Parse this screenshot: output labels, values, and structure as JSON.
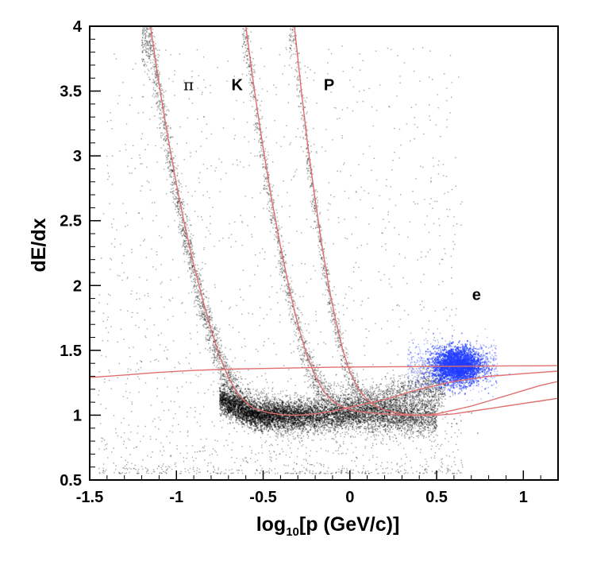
{
  "chart_data": {
    "type": "scatter",
    "title": "",
    "xlabel": "log10[p (GeV/c)]",
    "xlabel_main": "log",
    "xlabel_sub": "10",
    "xlabel_rest": "[p (GeV/c)]",
    "ylabel": "dE/dx",
    "xlim": [
      -1.5,
      1.2
    ],
    "ylim": [
      0.5,
      4.0
    ],
    "x_ticks": [
      "-1.5",
      "-1",
      "-0.5",
      "0",
      "0.5",
      "1"
    ],
    "y_ticks": [
      "0.5",
      "1",
      "1.5",
      "2",
      "2.5",
      "3",
      "3.5",
      "4"
    ],
    "grid": false,
    "band_labels": [
      {
        "text": "π",
        "x": -0.93,
        "y": 3.55
      },
      {
        "text": "K",
        "x": -0.65,
        "y": 3.55
      },
      {
        "text": "P",
        "x": -0.12,
        "y": 3.55
      },
      {
        "text": "e",
        "x": 0.73,
        "y": 1.93
      }
    ],
    "series": [
      {
        "kind": "curve",
        "color": "#e07070",
        "points": [
          [
            -1.15,
            4.0
          ],
          [
            -1.1,
            3.55
          ],
          [
            -1.05,
            3.15
          ],
          [
            -1.0,
            2.78
          ],
          [
            -0.95,
            2.45
          ],
          [
            -0.9,
            2.16
          ],
          [
            -0.85,
            1.9
          ],
          [
            -0.8,
            1.66
          ],
          [
            -0.75,
            1.45
          ],
          [
            -0.7,
            1.29
          ],
          [
            -0.65,
            1.17
          ],
          [
            -0.6,
            1.1
          ],
          [
            -0.55,
            1.05
          ],
          [
            -0.5,
            1.03
          ],
          [
            -0.45,
            1.015
          ],
          [
            -0.4,
            1.005
          ],
          [
            -0.35,
            1.0
          ],
          [
            -0.3,
            1.0
          ],
          [
            -0.2,
            1.01
          ],
          [
            -0.1,
            1.03
          ],
          [
            0.0,
            1.06
          ],
          [
            0.1,
            1.09
          ],
          [
            0.2,
            1.12
          ],
          [
            0.3,
            1.16
          ],
          [
            0.4,
            1.2
          ],
          [
            0.5,
            1.23
          ],
          [
            0.6,
            1.26
          ],
          [
            0.7,
            1.28
          ],
          [
            0.8,
            1.3
          ],
          [
            0.9,
            1.31
          ],
          [
            1.0,
            1.32
          ],
          [
            1.1,
            1.33
          ],
          [
            1.2,
            1.34
          ]
        ]
      },
      {
        "kind": "curve",
        "color": "#e07070",
        "points": [
          [
            -0.6,
            4.0
          ],
          [
            -0.55,
            3.5
          ],
          [
            -0.5,
            3.06
          ],
          [
            -0.45,
            2.66
          ],
          [
            -0.4,
            2.3
          ],
          [
            -0.35,
            1.98
          ],
          [
            -0.3,
            1.7
          ],
          [
            -0.25,
            1.47
          ],
          [
            -0.2,
            1.3
          ],
          [
            -0.15,
            1.18
          ],
          [
            -0.1,
            1.11
          ],
          [
            -0.05,
            1.07
          ],
          [
            0.0,
            1.04
          ],
          [
            0.1,
            1.02
          ],
          [
            0.2,
            1.01
          ],
          [
            0.3,
            1.0
          ],
          [
            0.4,
            1.0
          ],
          [
            0.5,
            1.01
          ],
          [
            0.6,
            1.04
          ],
          [
            0.7,
            1.07
          ],
          [
            0.8,
            1.11
          ],
          [
            0.9,
            1.15
          ],
          [
            1.0,
            1.19
          ],
          [
            1.1,
            1.23
          ],
          [
            1.2,
            1.26
          ]
        ]
      },
      {
        "kind": "curve",
        "color": "#e07070",
        "points": [
          [
            -0.32,
            4.0
          ],
          [
            -0.28,
            3.5
          ],
          [
            -0.24,
            3.05
          ],
          [
            -0.2,
            2.66
          ],
          [
            -0.16,
            2.3
          ],
          [
            -0.12,
            1.98
          ],
          [
            -0.08,
            1.72
          ],
          [
            -0.04,
            1.5
          ],
          [
            0.0,
            1.33
          ],
          [
            0.05,
            1.2
          ],
          [
            0.1,
            1.12
          ],
          [
            0.15,
            1.07
          ],
          [
            0.2,
            1.04
          ],
          [
            0.3,
            1.01
          ],
          [
            0.4,
            1.0
          ],
          [
            0.5,
            1.0
          ],
          [
            0.6,
            1.01
          ],
          [
            0.7,
            1.03
          ],
          [
            0.8,
            1.05
          ],
          [
            0.9,
            1.07
          ],
          [
            1.0,
            1.09
          ],
          [
            1.1,
            1.11
          ],
          [
            1.2,
            1.13
          ]
        ]
      },
      {
        "kind": "curve",
        "color": "#e07070",
        "points": [
          [
            -1.5,
            1.29
          ],
          [
            -1.3,
            1.31
          ],
          [
            -1.1,
            1.33
          ],
          [
            -0.9,
            1.345
          ],
          [
            -0.7,
            1.355
          ],
          [
            -0.5,
            1.36
          ],
          [
            -0.3,
            1.365
          ],
          [
            -0.1,
            1.37
          ],
          [
            0.1,
            1.372
          ],
          [
            0.3,
            1.374
          ],
          [
            0.5,
            1.376
          ],
          [
            0.7,
            1.378
          ],
          [
            0.9,
            1.38
          ],
          [
            1.1,
            1.381
          ],
          [
            1.2,
            1.382
          ]
        ]
      }
    ],
    "scatter_regions": [
      {
        "kind": "pion-band",
        "color": "#000000"
      },
      {
        "kind": "kaon-band",
        "color": "#000000"
      },
      {
        "kind": "proton-band",
        "color": "#000000"
      },
      {
        "kind": "electron-cloud",
        "color": "#1f3cff",
        "x": 0.62,
        "y": 1.38
      }
    ]
  }
}
